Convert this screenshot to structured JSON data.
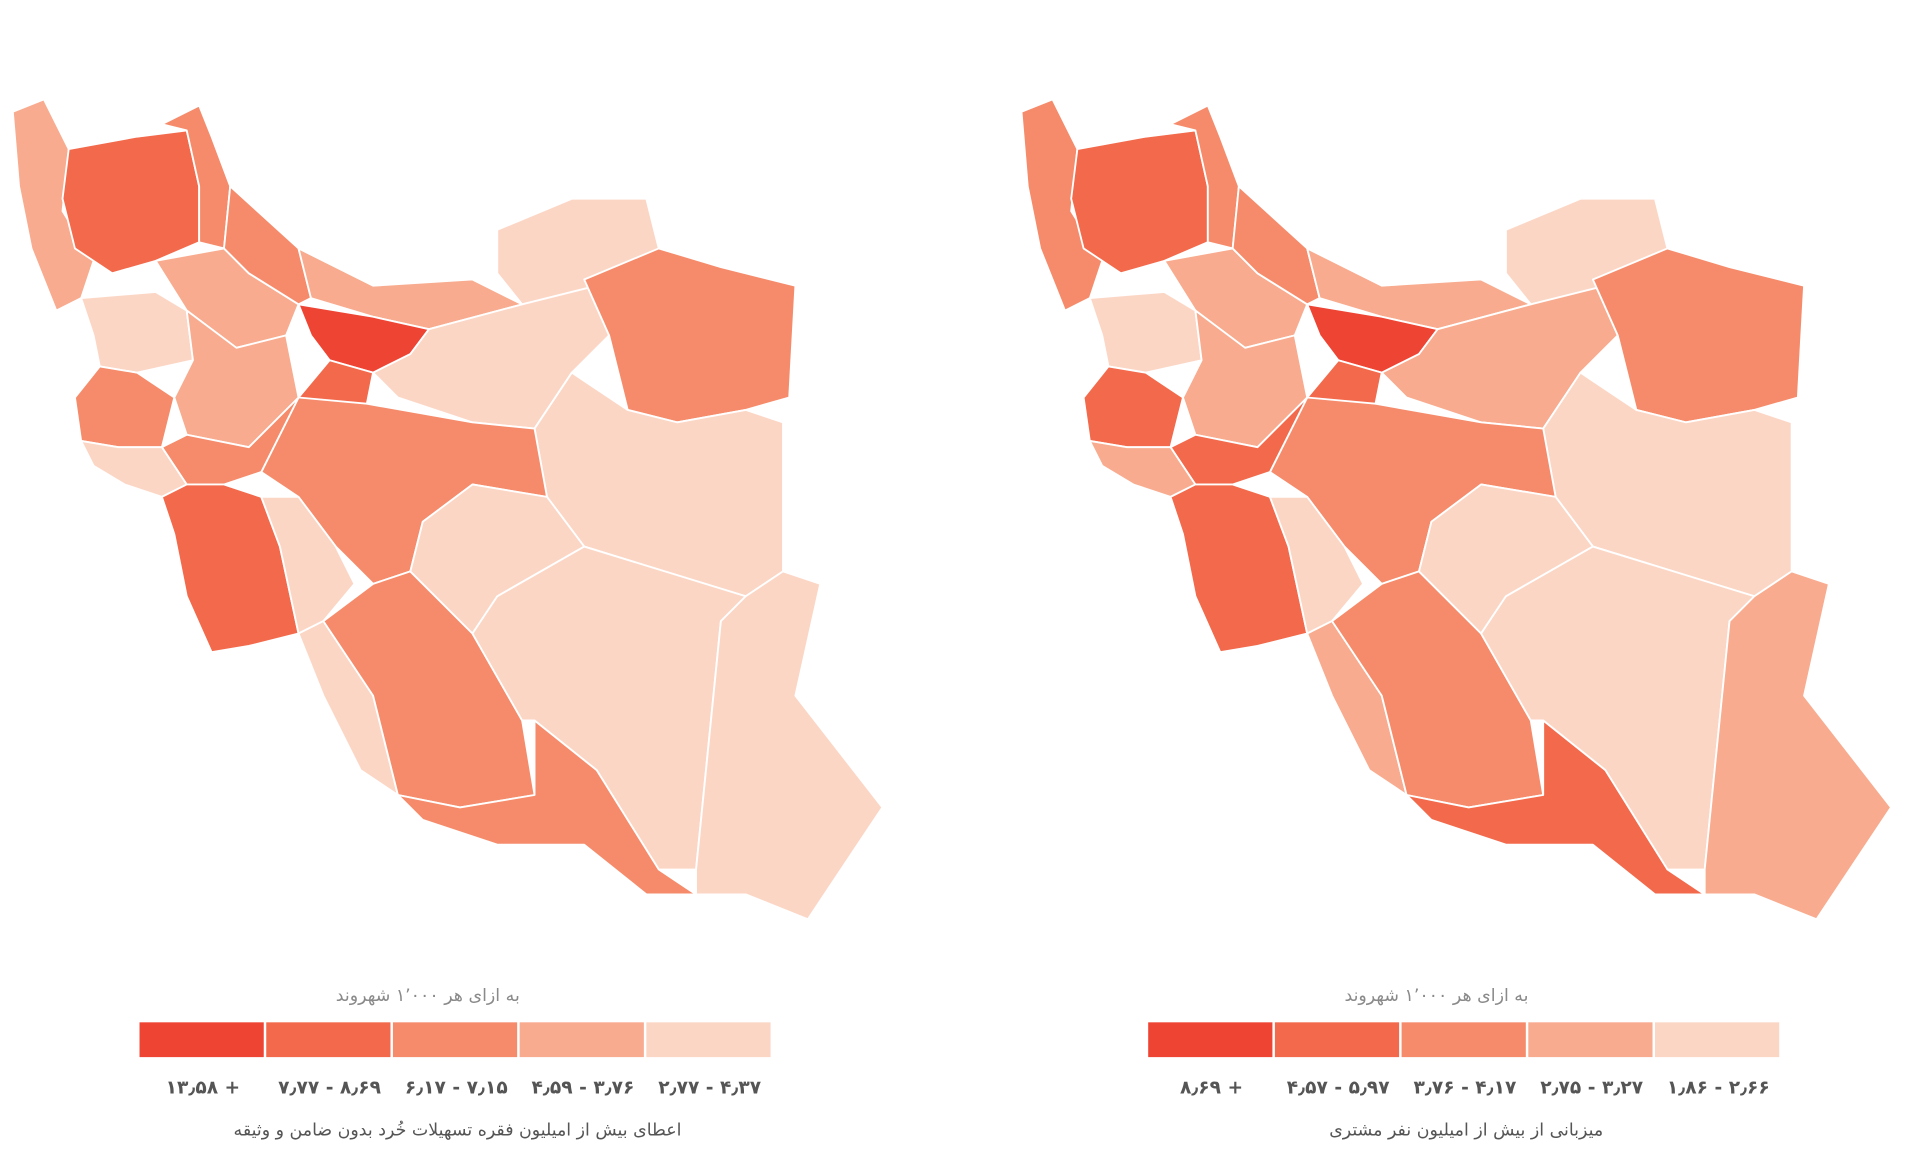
{
  "maps": [
    {
      "legend": {
        "unit": "به ازای هر ۱٬۰۰۰ شهروند",
        "items": [
          {
            "label": "۱۳٫۵۸ +",
            "color": "#ee4433"
          },
          {
            "label": "۷٫۷۷ - ۸٫۶۹",
            "color": "#f2694b"
          },
          {
            "label": "۶٫۱۷ - ۷٫۱۵",
            "color": "#f58b6b"
          },
          {
            "label": "۴٫۵۹ - ۳٫۷۶",
            "color": "#f8ab8e"
          },
          {
            "label": "۲٫۷۷ - ۴٫۳۷",
            "color": "#fcd6c5"
          }
        ]
      },
      "caption": "اعطای بیش از امیلیون فقره تسهیلات خُرد بدون ضامن و وثیقه"
    },
    {
      "legend": {
        "unit": "به ازای هر ۱٬۰۰۰ شهروند",
        "items": [
          {
            "label": "۸٫۶۹ +",
            "color": "#ee4433"
          },
          {
            "label": "۴٫۵۷ - ۵٫۹۷",
            "color": "#f2694b"
          },
          {
            "label": "۳٫۷۶ - ۴٫۱۷",
            "color": "#f58b6b"
          },
          {
            "label": "۲٫۷۵ - ۳٫۲۷",
            "color": "#f8ab8e"
          },
          {
            "label": "۱٫۸۶ - ۲٫۶۶",
            "color": "#fcd6c5"
          }
        ]
      },
      "caption": "میزبانی از بیش از امیلیون نفر مشتری"
    }
  ]
}
